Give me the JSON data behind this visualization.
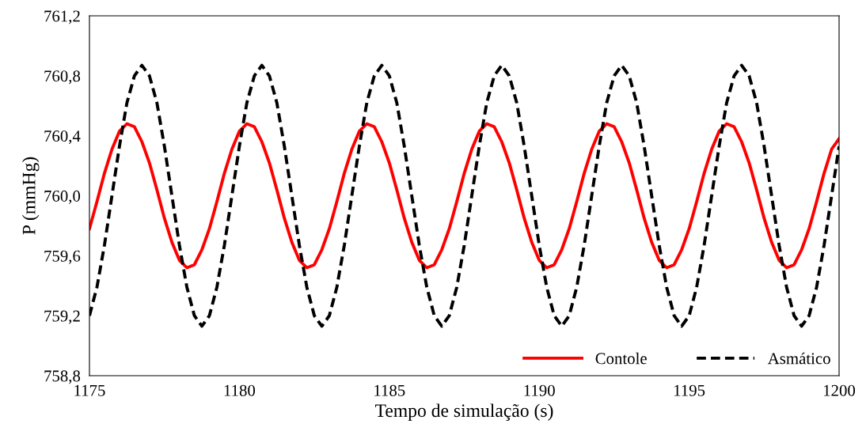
{
  "chart_data": {
    "type": "line",
    "xlabel": "Tempo de simulação (s)",
    "ylabel": "P (mmHg)",
    "x": [
      1175,
      1175.25,
      1175.5,
      1175.75,
      1176,
      1176.25,
      1176.5,
      1176.75,
      1177,
      1177.25,
      1177.5,
      1177.75,
      1178,
      1178.25,
      1178.5,
      1178.75,
      1179,
      1179.25,
      1179.5,
      1179.75,
      1180,
      1180.25,
      1180.5,
      1180.75,
      1181,
      1181.25,
      1181.5,
      1181.75,
      1182,
      1182.25,
      1182.5,
      1182.75,
      1183,
      1183.25,
      1183.5,
      1183.75,
      1184,
      1184.25,
      1184.5,
      1184.75,
      1185,
      1185.25,
      1185.5,
      1185.75,
      1186,
      1186.25,
      1186.5,
      1186.75,
      1187,
      1187.25,
      1187.5,
      1187.75,
      1188,
      1188.25,
      1188.5,
      1188.75,
      1189,
      1189.25,
      1189.5,
      1189.75,
      1190,
      1190.25,
      1190.5,
      1190.75,
      1191,
      1191.25,
      1191.5,
      1191.75,
      1192,
      1192.25,
      1192.5,
      1192.75,
      1193,
      1193.25,
      1193.5,
      1193.75,
      1194,
      1194.25,
      1194.5,
      1194.75,
      1195,
      1195.25,
      1195.5,
      1195.75,
      1196,
      1196.25,
      1196.5,
      1196.75,
      1197,
      1197.25,
      1197.5,
      1197.75,
      1198,
      1198.25,
      1198.5,
      1198.75,
      1199,
      1199.25,
      1199.5,
      1199.75,
      1200
    ],
    "series": [
      {
        "name": "Contole",
        "color": "#ff0000",
        "line_style": "solid",
        "values": [
          759.78,
          759.96,
          760.15,
          760.31,
          760.43,
          760.48,
          760.46,
          760.36,
          760.22,
          760.04,
          759.85,
          759.69,
          759.57,
          759.52,
          759.54,
          759.64,
          759.78,
          759.96,
          760.15,
          760.31,
          760.43,
          760.48,
          760.46,
          760.36,
          760.22,
          760.04,
          759.85,
          759.69,
          759.57,
          759.52,
          759.54,
          759.64,
          759.78,
          759.96,
          760.15,
          760.31,
          760.43,
          760.48,
          760.46,
          760.36,
          760.22,
          760.04,
          759.85,
          759.69,
          759.57,
          759.52,
          759.54,
          759.64,
          759.78,
          759.96,
          760.15,
          760.31,
          760.43,
          760.48,
          760.46,
          760.36,
          760.22,
          760.04,
          759.85,
          759.69,
          759.57,
          759.52,
          759.54,
          759.64,
          759.78,
          759.96,
          760.15,
          760.31,
          760.43,
          760.48,
          760.46,
          760.36,
          760.22,
          760.04,
          759.85,
          759.69,
          759.57,
          759.52,
          759.54,
          759.64,
          759.78,
          759.96,
          760.15,
          760.31,
          760.43,
          760.48,
          760.46,
          760.36,
          760.22,
          760.04,
          759.85,
          759.69,
          759.57,
          759.52,
          759.54,
          759.64,
          759.78,
          759.96,
          760.15,
          760.31,
          760.38
        ]
      },
      {
        "name": "Asmático",
        "color": "#000000",
        "line_style": "dashed",
        "values": [
          759.2,
          759.39,
          759.67,
          760.0,
          760.33,
          760.62,
          760.8,
          760.87,
          760.8,
          760.62,
          760.33,
          760.0,
          759.67,
          759.39,
          759.2,
          759.13,
          759.2,
          759.39,
          759.67,
          760.0,
          760.33,
          760.62,
          760.8,
          760.87,
          760.8,
          760.62,
          760.33,
          760.0,
          759.67,
          759.39,
          759.2,
          759.13,
          759.2,
          759.39,
          759.67,
          760.0,
          760.33,
          760.62,
          760.8,
          760.87,
          760.8,
          760.62,
          760.33,
          760.0,
          759.67,
          759.39,
          759.2,
          759.13,
          759.2,
          759.39,
          759.67,
          760.0,
          760.33,
          760.62,
          760.8,
          760.87,
          760.8,
          760.62,
          760.33,
          760.0,
          759.67,
          759.39,
          759.2,
          759.13,
          759.2,
          759.39,
          759.67,
          760.0,
          760.33,
          760.62,
          760.8,
          760.87,
          760.8,
          760.62,
          760.33,
          760.0,
          759.67,
          759.39,
          759.2,
          759.13,
          759.2,
          759.39,
          759.67,
          760.0,
          760.33,
          760.62,
          760.8,
          760.87,
          760.8,
          760.62,
          760.33,
          760.0,
          759.67,
          759.39,
          759.2,
          759.13,
          759.2,
          759.39,
          759.67,
          760.0,
          760.33
        ]
      }
    ],
    "xlim": [
      1175,
      1200
    ],
    "xticks": [
      1175,
      1180,
      1185,
      1190,
      1195,
      1200
    ],
    "ylim": [
      758.8,
      761.2
    ],
    "yticks": [
      {
        "value": 758.8,
        "label": "758,8"
      },
      {
        "value": 759.2,
        "label": "759,2"
      },
      {
        "value": 759.6,
        "label": "759,6"
      },
      {
        "value": 760.0,
        "label": "760,0"
      },
      {
        "value": 760.4,
        "label": "760,4"
      },
      {
        "value": 760.8,
        "label": "760,8"
      },
      {
        "value": 761.2,
        "label": "761,2"
      }
    ],
    "legend": "bottom right",
    "grid": false
  }
}
